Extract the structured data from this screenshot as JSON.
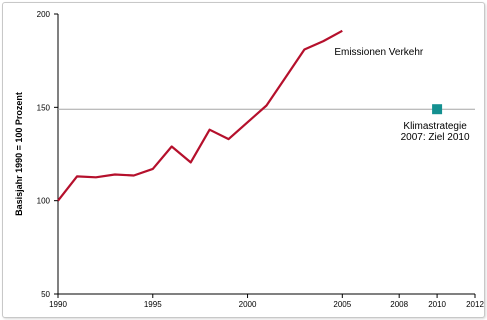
{
  "chart_data": {
    "type": "line",
    "title": "",
    "xlabel": "",
    "ylabel": "Basisjahr 1990 = 100 Prozent",
    "xlim": [
      1990,
      2012
    ],
    "ylim": [
      50,
      200
    ],
    "x_ticks": [
      "1990",
      "1995",
      "2000",
      "2005",
      "2008",
      "2010",
      "2012"
    ],
    "y_ticks": [
      "50",
      "100",
      "150",
      "200"
    ],
    "grid": false,
    "series": [
      {
        "name": "Emissionen Verkehr",
        "color": "#b5102c",
        "x": [
          1990,
          1991,
          1992,
          1993,
          1994,
          1995,
          1996,
          1997,
          1998,
          1999,
          2000,
          2001,
          2002,
          2003,
          2004,
          2005
        ],
        "values": [
          100,
          113,
          112.5,
          114,
          113.5,
          117,
          129,
          120.5,
          138,
          133,
          142,
          151,
          166,
          181,
          185.5,
          191
        ]
      }
    ],
    "reference_line": {
      "y": 149,
      "color": "#a6a6a6"
    },
    "target": {
      "x": 2010,
      "y": 149,
      "color": "#149090",
      "label_lines": [
        "Klimastrategie",
        "2007: Ziel 2010"
      ]
    }
  }
}
